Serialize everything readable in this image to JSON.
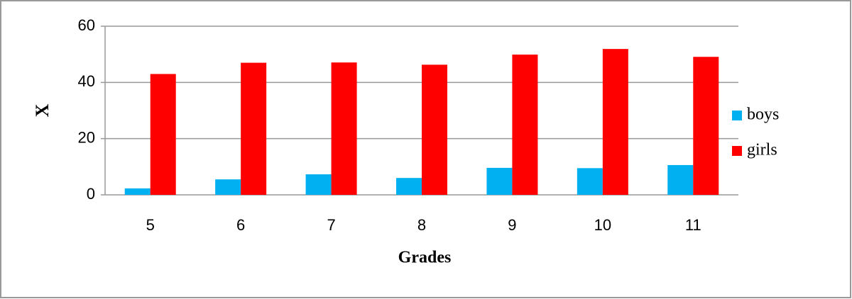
{
  "chart_data": {
    "type": "bar",
    "x_label": "Grades",
    "y_label": "X",
    "categories": [
      "5",
      "6",
      "7",
      "8",
      "9",
      "10",
      "11"
    ],
    "series": [
      {
        "name": "boys",
        "color": "#00b0f0",
        "values": [
          2.3,
          5.5,
          7.3,
          6,
          9.6,
          9.5,
          10.6
        ]
      },
      {
        "name": "girls",
        "color": "#ff0000",
        "values": [
          43,
          47,
          47.1,
          46.3,
          49.9,
          51.9,
          49.1
        ]
      }
    ],
    "ylim": [
      0,
      60
    ],
    "yticks": [
      0,
      20,
      40,
      60
    ],
    "grid": true,
    "legend": "right"
  }
}
